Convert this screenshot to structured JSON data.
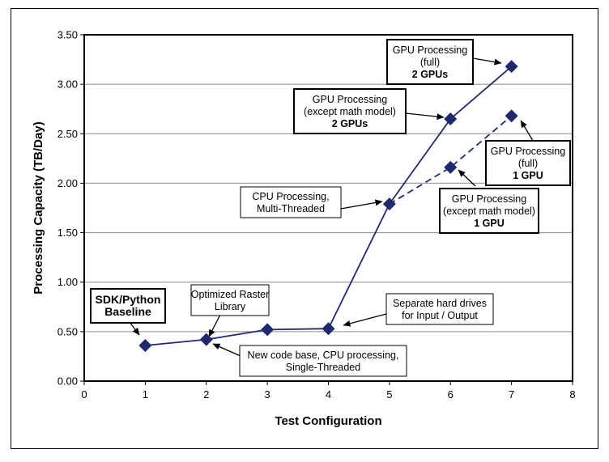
{
  "chart_data": {
    "type": "line",
    "xlabel": "Test Configuration",
    "ylabel": "Processing Capacity (TB/Day)",
    "xlim": [
      0,
      8
    ],
    "ylim": [
      0,
      3.5
    ],
    "x_ticks": [
      "0",
      "1",
      "2",
      "3",
      "4",
      "5",
      "6",
      "7",
      "8"
    ],
    "y_ticks": [
      "0.00",
      "0.50",
      "1.00",
      "1.50",
      "2.00",
      "2.50",
      "3.00",
      "3.50"
    ],
    "grid": true,
    "marker_color": "#1f2a6e",
    "series": [
      {
        "style": "solid",
        "points": [
          [
            1,
            0.36
          ],
          [
            2,
            0.42
          ],
          [
            3,
            0.52
          ],
          [
            4,
            0.53
          ],
          [
            5,
            1.79
          ],
          [
            6,
            2.65
          ],
          [
            7,
            3.18
          ]
        ]
      },
      {
        "style": "dashed",
        "points": [
          [
            5,
            1.79
          ],
          [
            6,
            2.16
          ],
          [
            7,
            2.68
          ]
        ]
      }
    ],
    "annotations": [
      {
        "lines": [
          "SDK/Python",
          "Baseline"
        ],
        "bold_lines": [
          0,
          1
        ],
        "box_bold": true,
        "target": [
          1,
          0.36
        ]
      },
      {
        "lines": [
          "Optimized Raster",
          "Library"
        ],
        "bold_lines": [],
        "box_bold": false,
        "target": [
          2,
          0.42
        ]
      },
      {
        "lines": [
          "New code base, CPU processing,",
          "Single-Threaded"
        ],
        "bold_lines": [],
        "box_bold": false,
        "target": [
          3,
          0.52
        ]
      },
      {
        "lines": [
          "Separate hard drives",
          "for Input / Output"
        ],
        "bold_lines": [],
        "box_bold": false,
        "target": [
          4,
          0.53
        ]
      },
      {
        "lines": [
          "CPU Processing,",
          "Multi-Threaded"
        ],
        "bold_lines": [],
        "box_bold": false,
        "target": [
          5,
          1.79
        ]
      },
      {
        "lines": [
          "GPU Processing",
          "(except math model)",
          "2 GPUs"
        ],
        "bold_lines": [
          2
        ],
        "box_bold": true,
        "target": [
          6,
          2.65
        ]
      },
      {
        "lines": [
          "GPU Processing",
          "(full)",
          "2 GPUs"
        ],
        "bold_lines": [
          2
        ],
        "box_bold": true,
        "target": [
          7,
          3.18
        ]
      },
      {
        "lines": [
          "GPU Processing",
          "(except math model)",
          "1 GPU"
        ],
        "bold_lines": [
          2
        ],
        "box_bold": true,
        "target": [
          6,
          2.16
        ]
      },
      {
        "lines": [
          "GPU Processing",
          "(full)",
          "1 GPU"
        ],
        "bold_lines": [
          2
        ],
        "box_bold": true,
        "target": [
          7,
          2.68
        ]
      }
    ]
  }
}
